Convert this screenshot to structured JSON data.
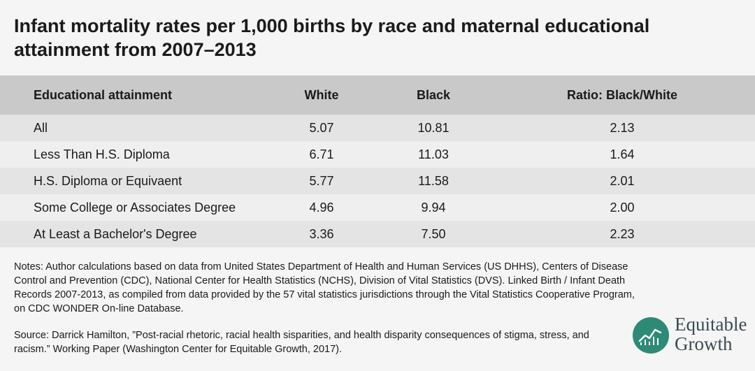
{
  "title": "Infant mortality rates per 1,000 births by race and maternal educational attainment from 2007–2013",
  "chart_data": {
    "type": "table",
    "title": "Infant mortality rates per 1,000 births by race and maternal educational attainment from 2007–2013",
    "columns": [
      "Educational attainment",
      "White",
      "Black",
      "Ratio: Black/White"
    ],
    "rows": [
      [
        "All",
        "5.07",
        "10.81",
        "2.13"
      ],
      [
        "Less Than H.S. Diploma",
        "6.71",
        "11.03",
        "1.64"
      ],
      [
        "H.S. Diploma or Equivaent",
        "5.77",
        "11.58",
        "2.01"
      ],
      [
        "Some College or Associates Degree",
        "4.96",
        "9.94",
        "2.00"
      ],
      [
        "At Least a Bachelor's Degree",
        "3.36",
        "7.50",
        "2.23"
      ]
    ]
  },
  "notes": "Notes: Author calculations based on data from United States Department of Health and Human Services (US DHHS), Centers of Disease Control and Prevention (CDC), National Center for Health Statistics (NCHS), Division of Vital Statistics (DVS). Linked Birth / Infant Death Records 2007-2013, as compiled from data provided by the 57 vital statistics jurisdictions through the Vital Statistics Cooperative Program, on CDC WONDER On-line Database.",
  "source": "Source: Darrick Hamilton, ”Post-racial rhetoric, racial health sisparities, and health disparity consequences of stigma, stress, and racism.” Working Paper (Washington Center for Equitable Growth, 2017).",
  "logo": {
    "line1": "Equitable",
    "line2": "Growth",
    "icon": "equitable-growth-logo-icon",
    "color": "#2d8a76"
  },
  "colors": {
    "header_bg": "#c9c9c9",
    "row_odd": "#e4e4e4",
    "row_even": "#efefef",
    "page_bg": "#f5f5f5"
  }
}
